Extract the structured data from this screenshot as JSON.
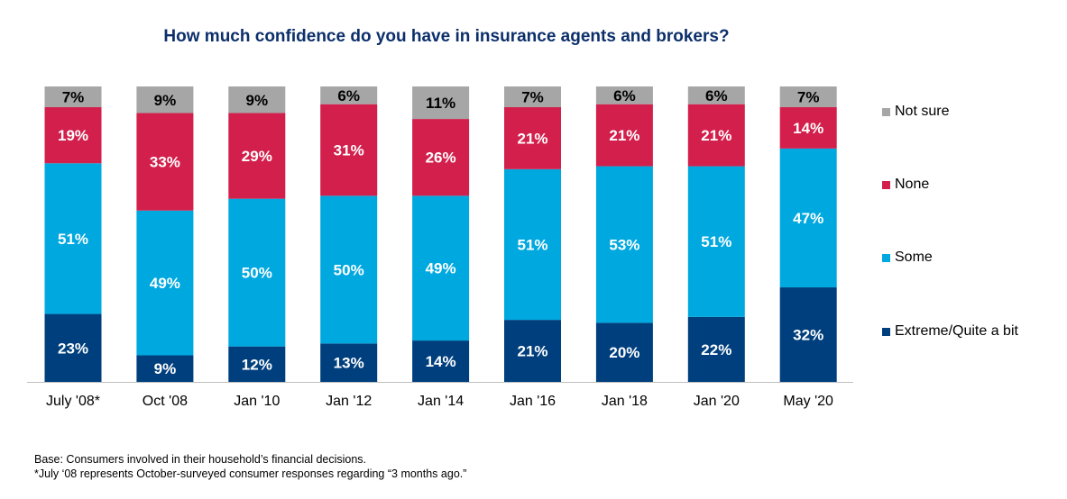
{
  "chart_data": {
    "type": "bar",
    "stacked": true,
    "title": "How much confidence do you have in insurance agents and brokers?",
    "xlabel": "",
    "ylabel": "",
    "ylim": [
      0,
      100
    ],
    "unit": "%",
    "grid": false,
    "legend_position": "right",
    "categories": [
      "July '08*",
      "Oct '08",
      "Jan '10",
      "Jan '12",
      "Jan '14",
      "Jan '16",
      "Jan '18",
      "Jan '20",
      "May '20"
    ],
    "series": [
      {
        "name": "Extreme/Quite a bit",
        "color": "#003f7d",
        "values": [
          23,
          9,
          12,
          13,
          14,
          21,
          20,
          22,
          32
        ]
      },
      {
        "name": "Some",
        "color": "#00a8e0",
        "values": [
          51,
          49,
          50,
          50,
          49,
          51,
          53,
          51,
          47
        ]
      },
      {
        "name": "None",
        "color": "#d31f4b",
        "values": [
          19,
          33,
          29,
          31,
          26,
          21,
          21,
          21,
          14
        ]
      },
      {
        "name": "Not sure",
        "color": "#a6a6a6",
        "values": [
          7,
          9,
          9,
          6,
          11,
          7,
          6,
          6,
          7
        ]
      }
    ]
  },
  "footnotes": {
    "base": "Base: Consumers involved in their household’s financial decisions.",
    "note": "*July ‘08 represents October-surveyed consumer responses regarding “3 months ago.”"
  }
}
